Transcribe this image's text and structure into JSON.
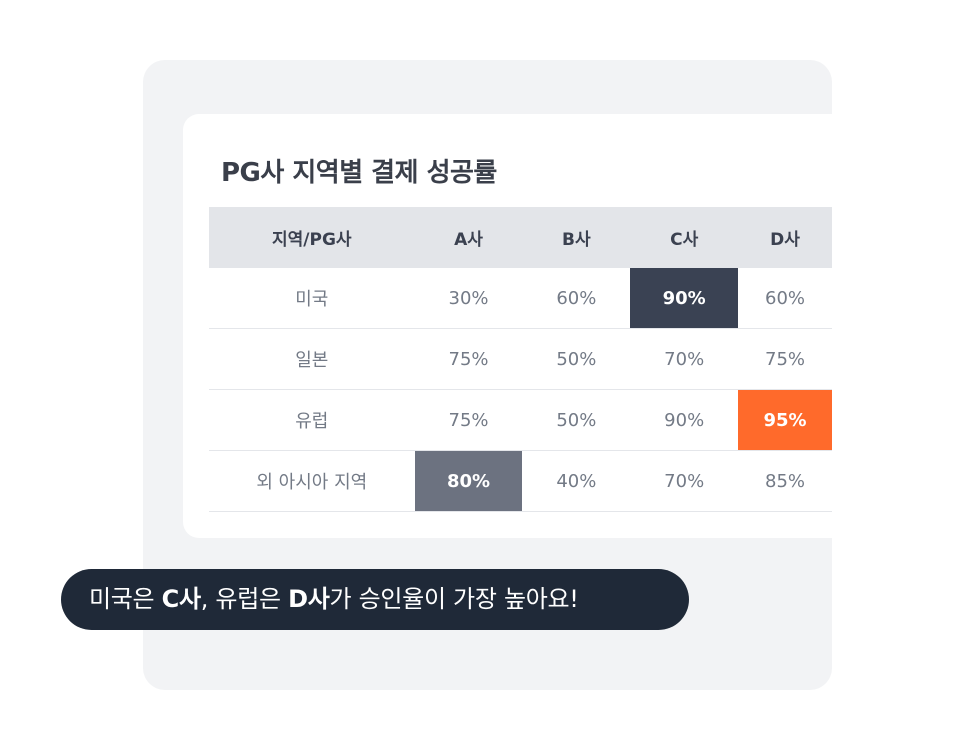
{
  "card": {
    "title": "PG사 지역별 결제 성공률"
  },
  "table": {
    "headers": [
      "지역/PG사",
      "A사",
      "B사",
      "C사",
      "D사"
    ],
    "rows": [
      {
        "region": "미국",
        "values": [
          "30%",
          "60%",
          "90%",
          "60%"
        ]
      },
      {
        "region": "일본",
        "values": [
          "75%",
          "50%",
          "70%",
          "75%"
        ]
      },
      {
        "region": "유럽",
        "values": [
          "75%",
          "50%",
          "90%",
          "95%"
        ]
      },
      {
        "region": "외 아시아 지역",
        "values": [
          "80%",
          "40%",
          "70%",
          "85%"
        ]
      }
    ],
    "highlight_colors": {
      "dark": "#3a4253",
      "mid": "#6c7280",
      "orange": "#ff6a2b"
    }
  },
  "bubble": {
    "part1": "미국은 ",
    "part2": "C사",
    "part3": ", 유럽은 ",
    "part4": "D사",
    "part5": "가 승인율이 가장 높아요!"
  }
}
